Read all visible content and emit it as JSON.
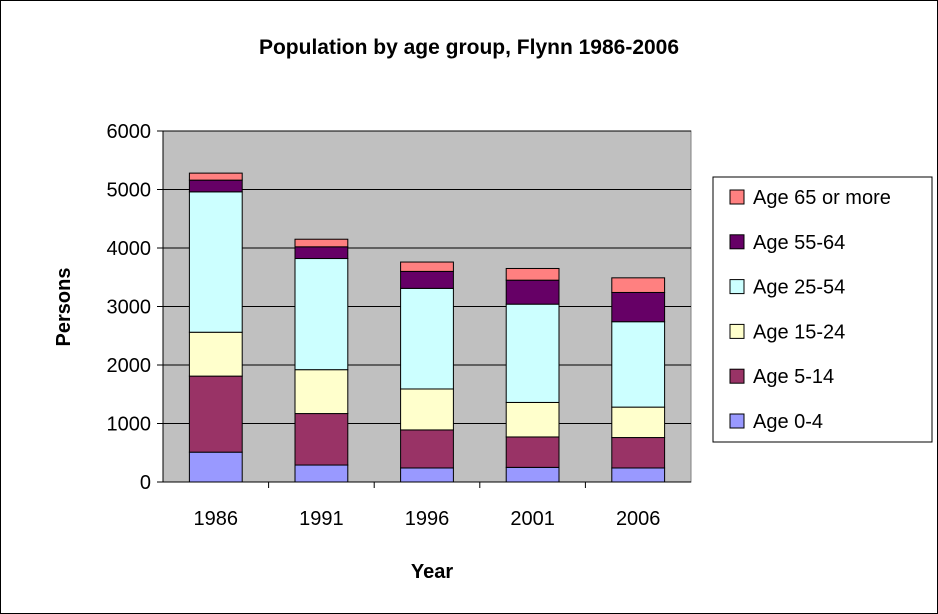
{
  "chart_data": {
    "type": "bar",
    "stacked": true,
    "title": "Population by age group, Flynn 1986-2006",
    "xlabel": "Year",
    "ylabel": "Persons",
    "categories": [
      "1986",
      "1991",
      "1996",
      "2001",
      "2006"
    ],
    "ylim": [
      0,
      6000
    ],
    "yticks": [
      0,
      1000,
      2000,
      3000,
      4000,
      5000,
      6000
    ],
    "grid": true,
    "plot_background": "#c0c0c0",
    "legend_position": "right",
    "series": [
      {
        "name": "Age 0-4",
        "color": "#9999ff",
        "values": [
          510,
          290,
          240,
          250,
          240
        ]
      },
      {
        "name": "Age 5-14",
        "color": "#993366",
        "values": [
          1300,
          880,
          650,
          520,
          520
        ]
      },
      {
        "name": "Age 15-24",
        "color": "#ffffcc",
        "values": [
          750,
          750,
          700,
          590,
          520
        ]
      },
      {
        "name": "Age 25-54",
        "color": "#ccffff",
        "values": [
          2400,
          1900,
          1720,
          1680,
          1460
        ]
      },
      {
        "name": "Age 55-64",
        "color": "#660066",
        "values": [
          200,
          200,
          290,
          410,
          500
        ]
      },
      {
        "name": "Age 65 or more",
        "color": "#ff8080",
        "values": [
          120,
          130,
          160,
          200,
          250
        ]
      }
    ]
  }
}
